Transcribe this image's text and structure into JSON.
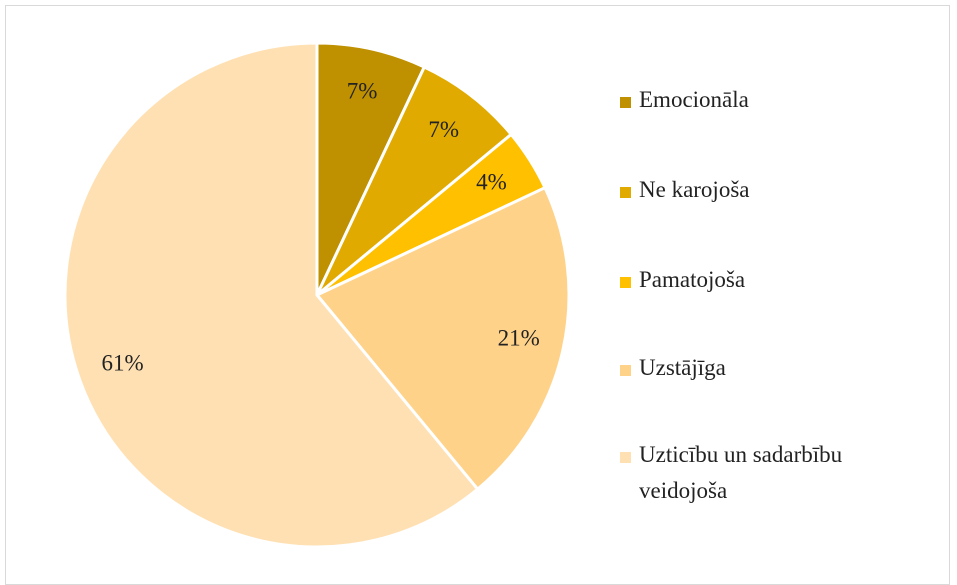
{
  "chart_data": {
    "type": "pie",
    "categories": [
      "Emocionāla",
      "Ne karojoša",
      "Pamatojoša",
      "Uzstājīga",
      "Uzticību un sadarbību veidojoša"
    ],
    "values": [
      7,
      7,
      4,
      21,
      61
    ],
    "value_labels": [
      "7%",
      "7%",
      "4%",
      "21%",
      "61%"
    ],
    "colors": [
      "#bf9000",
      "#e0aa00",
      "#ffc000",
      "#ffd28a",
      "#ffe0b3"
    ],
    "legend": "right"
  }
}
